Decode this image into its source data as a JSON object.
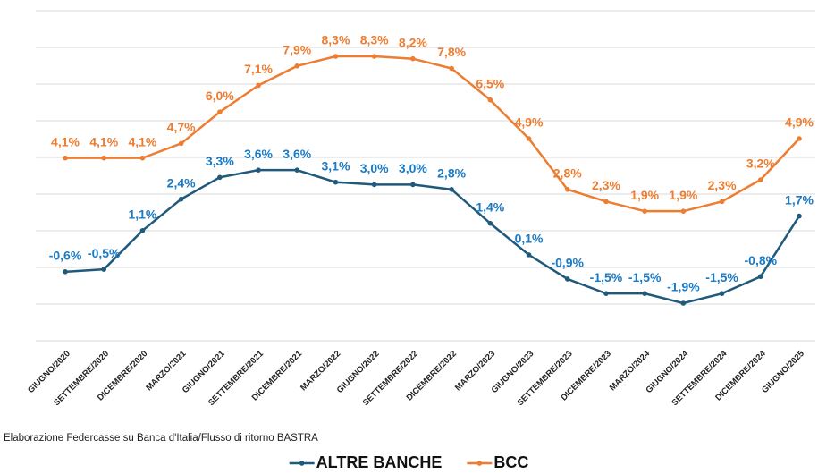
{
  "chart_data": {
    "type": "line",
    "categories": [
      "GIUGNO/2020",
      "SETTEMBRE/2020",
      "DICEMBRE/2020",
      "MARZO/2021",
      "GIUGNO/2021",
      "SETTEMBRE/2021",
      "DICEMBRE/2021",
      "MARZO/2022",
      "GIUGNO/2022",
      "SETTEMBRE/2022",
      "DICEMBRE/2022",
      "MARZO/2023",
      "GIUGNO/2023",
      "SETTEMBRE/2023",
      "DICEMBRE/2023",
      "MARZO/2024",
      "GIUGNO/2024",
      "SETTEMBRE/2024",
      "DICEMBRE/2024",
      "GIUGNO/2025"
    ],
    "series": [
      {
        "name": "ALTRE BANCHE",
        "color": "#1f5a7c",
        "label_color": "#1a7ac4",
        "values": [
          -0.6,
          -0.5,
          1.1,
          2.4,
          3.3,
          3.6,
          3.6,
          3.1,
          3.0,
          3.0,
          2.8,
          1.4,
          0.1,
          -0.9,
          -1.5,
          -1.5,
          -1.9,
          -1.5,
          -0.8,
          1.7
        ],
        "value_labels": [
          "-0,6%",
          "-0,5%",
          "1,1%",
          "2,4%",
          "3,3%",
          "3,6%",
          "3,6%",
          "3,1%",
          "3,0%",
          "3,0%",
          "2,8%",
          "1,4%",
          "0,1%",
          "-0,9%",
          "-1,5%",
          "-1,5%",
          "-1,9%",
          "-1,5%",
          "-0,8%",
          "1,7%"
        ]
      },
      {
        "name": "BCC",
        "color": "#ed7d31",
        "label_color": "#ed7d31",
        "values": [
          4.1,
          4.1,
          4.1,
          4.7,
          6.0,
          7.1,
          7.9,
          8.3,
          8.3,
          8.2,
          7.8,
          6.5,
          4.9,
          2.8,
          2.3,
          1.9,
          1.9,
          2.3,
          3.2,
          4.9
        ],
        "value_labels": [
          "4,1%",
          "4,1%",
          "4,1%",
          "4,7%",
          "6,0%",
          "7,1%",
          "7,9%",
          "8,3%",
          "8,3%",
          "8,2%",
          "7,8%",
          "6,5%",
          "4,9%",
          "2,8%",
          "2,3%",
          "1,9%",
          "1,9%",
          "2,3%",
          "3,2%",
          "4,9%"
        ]
      }
    ],
    "source": "Elaborazione Federcasse su Banca d'Italia/Flusso di ritorno BASTRA",
    "grid": true,
    "legend": "bottom"
  }
}
